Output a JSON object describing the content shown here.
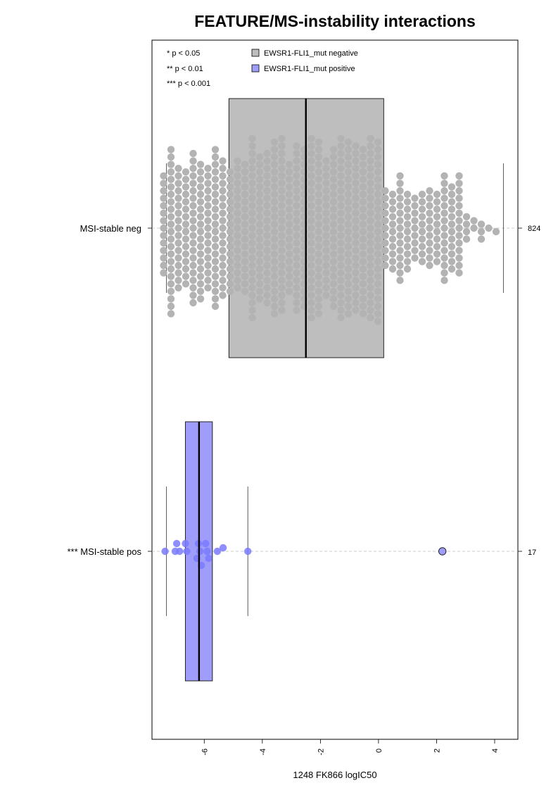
{
  "chart_data": {
    "type": "box",
    "orientation": "horizontal",
    "title": "FEATURE/MS-instability interactions",
    "xlabel": "1248 FK866 logIC50",
    "ylabel": "",
    "xlim": [
      -7.8,
      4.8
    ],
    "xticks": [
      -6,
      -4,
      -2,
      0,
      2,
      4
    ],
    "xtick_labels": [
      "-6",
      "-4",
      "-2",
      "0",
      "2",
      "4"
    ],
    "significance_legend": [
      "* p < 0.05",
      "** p < 0.01",
      "*** p < 0.001"
    ],
    "legend_position": "top-left",
    "grid": false,
    "groups": [
      {
        "label": "MSI-stable neg",
        "count": "824",
        "legend_label": "EWSR1-FLI1_mut negative",
        "color": "#bebebe",
        "point_color": "#b3b3b3",
        "box": {
          "whisker_low": -7.3,
          "q1": -5.15,
          "median": -2.5,
          "q3": 0.18,
          "whisker_high": 4.3
        },
        "point_range": [
          -7.4,
          4.3
        ]
      },
      {
        "label": "*** MSI-stable pos",
        "count": "17",
        "legend_label": "EWSR1-FLI1_mut positive",
        "color": "#9e9efa",
        "point_color": "#7a7aff",
        "box": {
          "whisker_low": -7.3,
          "q1": -6.65,
          "median": -6.18,
          "q3": -5.72,
          "whisker_high": -4.5
        },
        "points": [
          -7.35,
          -7.0,
          -6.95,
          -6.85,
          -6.65,
          -6.6,
          -6.25,
          -6.2,
          -6.15,
          -6.1,
          -5.95,
          -5.9,
          -5.85,
          -5.55,
          -5.35,
          -4.5
        ],
        "outliers": [
          2.2
        ]
      }
    ]
  }
}
